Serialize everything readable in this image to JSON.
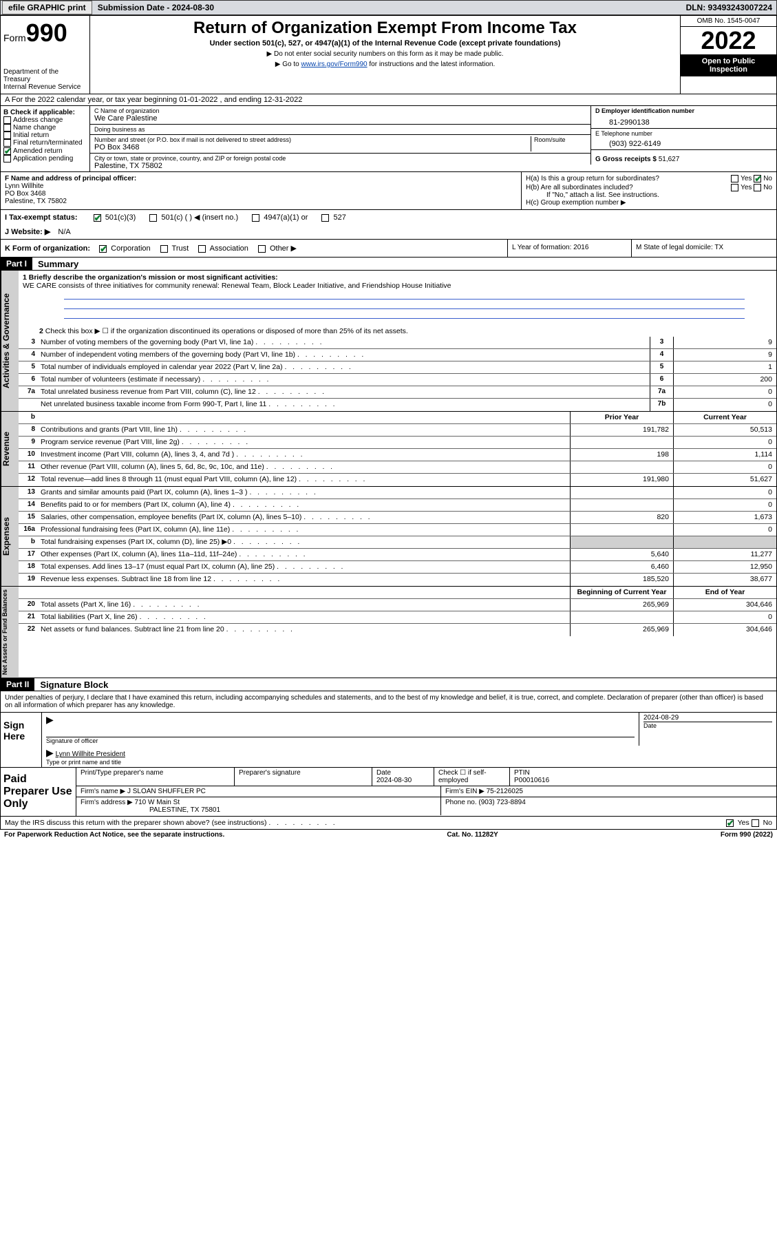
{
  "topbar": {
    "efile": "efile GRAPHIC print",
    "subdate_label": "Submission Date - ",
    "subdate": "2024-08-30",
    "dln": "DLN: 93493243007224"
  },
  "header": {
    "form_label": "Form",
    "form_num": "990",
    "dept": "Department of the Treasury",
    "irs": "Internal Revenue Service",
    "title": "Return of Organization Exempt From Income Tax",
    "subtitle": "Under section 501(c), 527, or 4947(a)(1) of the Internal Revenue Code (except private foundations)",
    "note1": "▶ Do not enter social security numbers on this form as it may be made public.",
    "note2_pre": "▶ Go to ",
    "note2_link": "www.irs.gov/Form990",
    "note2_post": " for instructions and the latest information.",
    "omb": "OMB No. 1545-0047",
    "year": "2022",
    "inspect": "Open to Public Inspection"
  },
  "row_a": "A For the 2022 calendar year, or tax year beginning 01-01-2022   , and ending 12-31-2022",
  "section_b": {
    "title": "B Check if applicable:",
    "items": [
      "Address change",
      "Name change",
      "Initial return",
      "Final return/terminated",
      "Amended return",
      "Application pending"
    ],
    "checked_idx": 4
  },
  "section_c": {
    "name_label": "C Name of organization",
    "name": "We Care Palestine",
    "dba_label": "Doing business as",
    "dba": "",
    "addr_label": "Number and street (or P.O. box if mail is not delivered to street address)",
    "room_label": "Room/suite",
    "addr": "PO Box 3468",
    "city_label": "City or town, state or province, country, and ZIP or foreign postal code",
    "city": "Palestine, TX  75802"
  },
  "section_d": {
    "label": "D Employer identification number",
    "val": "81-2990138"
  },
  "section_e": {
    "label": "E Telephone number",
    "val": "(903) 922-6149"
  },
  "section_g": {
    "label": "G Gross receipts $",
    "val": "51,627"
  },
  "section_f": {
    "label": "F  Name and address of principal officer:",
    "name": "Lynn Willhite",
    "addr": "PO Box 3468",
    "city": "Palestine, TX  75802"
  },
  "section_h": {
    "ha": "H(a)  Is this a group return for subordinates?",
    "hb": "H(b)  Are all subordinates included?",
    "hb_note": "If \"No,\" attach a list. See instructions.",
    "hc": "H(c)  Group exemption number ▶",
    "yes": "Yes",
    "no": "No"
  },
  "row_i": {
    "label": "I     Tax-exempt status:",
    "opts": [
      "501(c)(3)",
      "501(c) (  ) ◀ (insert no.)",
      "4947(a)(1) or",
      "527"
    ],
    "checked_idx": 0
  },
  "row_j": {
    "label": "J    Website: ▶",
    "val": "N/A"
  },
  "row_k": {
    "label": "K Form of organization:",
    "opts": [
      "Corporation",
      "Trust",
      "Association",
      "Other ▶"
    ],
    "checked_idx": 0,
    "l_label": "L Year of formation: ",
    "l_val": "2016",
    "m_label": "M State of legal domicile: ",
    "m_val": "TX"
  },
  "part1": {
    "hdr": "Part I",
    "title": "Summary"
  },
  "activities": {
    "vtab": "Activities & Governance",
    "l1_label": "1  Briefly describe the organization's mission or most significant activities:",
    "l1_val": "WE CARE consists of three initiatives for community renewal: Renewal Team, Block Leader Initiative, and Friendshiop House Initiative",
    "l2": "Check this box ▶ ☐  if the organization discontinued its operations or disposed of more than 25% of its net assets.",
    "lines": [
      {
        "n": "3",
        "d": "Number of voting members of the governing body (Part VI, line 1a)",
        "b": "3",
        "v": "9"
      },
      {
        "n": "4",
        "d": "Number of independent voting members of the governing body (Part VI, line 1b)",
        "b": "4",
        "v": "9"
      },
      {
        "n": "5",
        "d": "Total number of individuals employed in calendar year 2022 (Part V, line 2a)",
        "b": "5",
        "v": "1"
      },
      {
        "n": "6",
        "d": "Total number of volunteers (estimate if necessary)",
        "b": "6",
        "v": "200"
      },
      {
        "n": "7a",
        "d": "Total unrelated business revenue from Part VIII, column (C), line 12",
        "b": "7a",
        "v": "0"
      },
      {
        "n": "",
        "d": "Net unrelated business taxable income from Form 990-T, Part I, line 11",
        "b": "7b",
        "v": "0"
      }
    ]
  },
  "cols": {
    "prior": "Prior Year",
    "current": "Current Year",
    "begin": "Beginning of Current Year",
    "end": "End of Year"
  },
  "revenue": {
    "vtab": "Revenue",
    "lines": [
      {
        "n": "8",
        "d": "Contributions and grants (Part VIII, line 1h)",
        "p": "191,782",
        "c": "50,513"
      },
      {
        "n": "9",
        "d": "Program service revenue (Part VIII, line 2g)",
        "p": "",
        "c": "0"
      },
      {
        "n": "10",
        "d": "Investment income (Part VIII, column (A), lines 3, 4, and 7d )",
        "p": "198",
        "c": "1,114"
      },
      {
        "n": "11",
        "d": "Other revenue (Part VIII, column (A), lines 5, 6d, 8c, 9c, 10c, and 11e)",
        "p": "",
        "c": "0"
      },
      {
        "n": "12",
        "d": "Total revenue—add lines 8 through 11 (must equal Part VIII, column (A), line 12)",
        "p": "191,980",
        "c": "51,627"
      }
    ]
  },
  "expenses": {
    "vtab": "Expenses",
    "lines": [
      {
        "n": "13",
        "d": "Grants and similar amounts paid (Part IX, column (A), lines 1–3 )",
        "p": "",
        "c": "0"
      },
      {
        "n": "14",
        "d": "Benefits paid to or for members (Part IX, column (A), line 4)",
        "p": "",
        "c": "0"
      },
      {
        "n": "15",
        "d": "Salaries, other compensation, employee benefits (Part IX, column (A), lines 5–10)",
        "p": "820",
        "c": "1,673"
      },
      {
        "n": "16a",
        "d": "Professional fundraising fees (Part IX, column (A), line 11e)",
        "p": "",
        "c": "0"
      },
      {
        "n": "b",
        "d": "Total fundraising expenses (Part IX, column (D), line 25) ▶0",
        "p": "shade",
        "c": "shade"
      },
      {
        "n": "17",
        "d": "Other expenses (Part IX, column (A), lines 11a–11d, 11f–24e)",
        "p": "5,640",
        "c": "11,277"
      },
      {
        "n": "18",
        "d": "Total expenses. Add lines 13–17 (must equal Part IX, column (A), line 25)",
        "p": "6,460",
        "c": "12,950"
      },
      {
        "n": "19",
        "d": "Revenue less expenses. Subtract line 18 from line 12",
        "p": "185,520",
        "c": "38,677"
      }
    ]
  },
  "netassets": {
    "vtab": "Net Assets or Fund Balances",
    "lines": [
      {
        "n": "20",
        "d": "Total assets (Part X, line 16)",
        "p": "265,969",
        "c": "304,646"
      },
      {
        "n": "21",
        "d": "Total liabilities (Part X, line 26)",
        "p": "",
        "c": "0"
      },
      {
        "n": "22",
        "d": "Net assets or fund balances. Subtract line 21 from line 20",
        "p": "265,969",
        "c": "304,646"
      }
    ]
  },
  "part2": {
    "hdr": "Part II",
    "title": "Signature Block"
  },
  "sig": {
    "decl": "Under penalties of perjury, I declare that I have examined this return, including accompanying schedules and statements, and to the best of my knowledge and belief, it is true, correct, and complete. Declaration of preparer (other than officer) is based on all information of which preparer has any knowledge.",
    "sign_here": "Sign Here",
    "sig_officer": "Signature of officer",
    "date": "Date",
    "sig_date": "2024-08-29",
    "name_title": "Lynn Willhite President",
    "type_label": "Type or print name and title"
  },
  "paid": {
    "label": "Paid Preparer Use Only",
    "h1": "Print/Type preparer's name",
    "h2": "Preparer's signature",
    "h3": "Date",
    "h3v": "2024-08-30",
    "h4": "Check ☐ if self-employed",
    "h5": "PTIN",
    "h5v": "P00010616",
    "firm_label": "Firm's name    ▶",
    "firm": "J SLOAN SHUFFLER PC",
    "ein_label": "Firm's EIN ▶",
    "ein": "75-2126025",
    "addr_label": "Firm's address ▶",
    "addr1": "710 W Main St",
    "addr2": "PALESTINE, TX  75801",
    "phone_label": "Phone no.",
    "phone": "(903) 723-8894"
  },
  "may": {
    "q": "May the IRS discuss this return with the preparer shown above? (see instructions)",
    "yes": "Yes",
    "no": "No"
  },
  "footer": {
    "l": "For Paperwork Reduction Act Notice, see the separate instructions.",
    "m": "Cat. No. 11282Y",
    "r": "Form 990 (2022)"
  }
}
